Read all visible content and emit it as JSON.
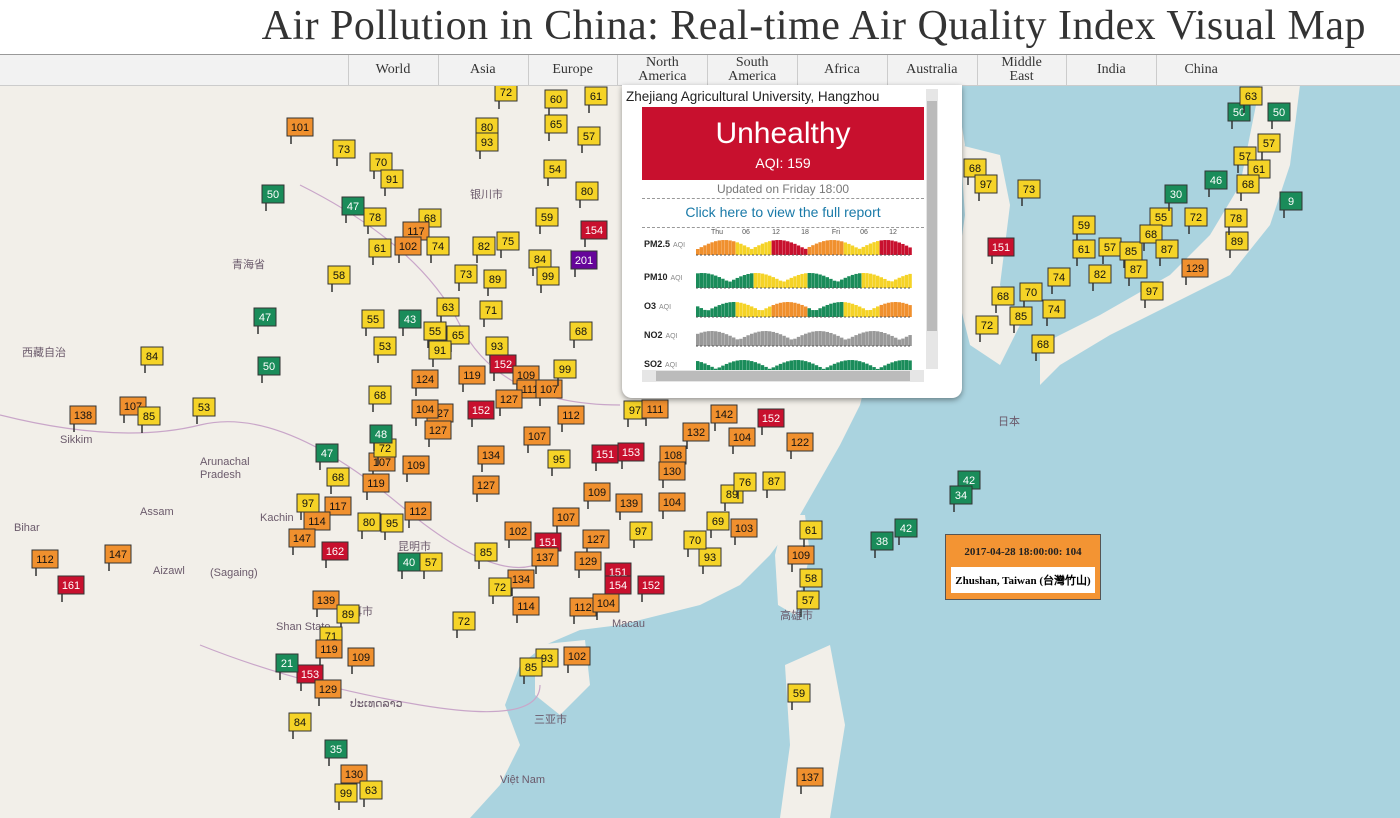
{
  "header": {
    "title": "Air Pollution in China: Real-time Air Quality Index Visual Map"
  },
  "nav": [
    "World",
    "Asia",
    "Europe",
    "North America",
    "South America",
    "Africa",
    "Australia",
    "Middle East",
    "India",
    "China"
  ],
  "popup": {
    "station": "Zhejiang Agricultural University, Hangzhou",
    "status": "Unhealthy",
    "aqi": "AQI: 159",
    "updated": "Updated on Friday 18:00",
    "link": "Click here to view the full report",
    "axis": [
      "Thu",
      "06",
      "12",
      "18",
      "Fri",
      "06",
      "12"
    ],
    "pollutants": [
      {
        "name": "PM2.5",
        "unit": "AQI"
      },
      {
        "name": "PM10",
        "unit": "AQI"
      },
      {
        "name": "O3",
        "unit": "AQI"
      },
      {
        "name": "NO2",
        "unit": "AQI"
      },
      {
        "name": "SO2",
        "unit": "AQI"
      }
    ]
  },
  "tooltip": {
    "time": "2017-04-28 18:00:00:",
    "value": 104,
    "place": "Zhushan, Taiwan (台灣竹山)"
  },
  "map_labels": [
    "银川市",
    "青海省",
    "西藏自治",
    "Arunachal",
    "Pradesh",
    "Kachin",
    "Assam",
    "Bihar",
    "Aizawl",
    "(Sagaing)",
    "Shan State",
    "昆明市",
    "普洱市",
    "Macau",
    "三亚市",
    "Việt Nam",
    "高雄市",
    "日本",
    "ປະເທດລາວ",
    "Sikkim"
  ],
  "markers": [
    72,
    60,
    61,
    101,
    80,
    93,
    65,
    57,
    73,
    70,
    91,
    54,
    80,
    50,
    47,
    78,
    68,
    117,
    74,
    102,
    61,
    82,
    75,
    59,
    154,
    201,
    84,
    99,
    73,
    89,
    58,
    47,
    55,
    43,
    71,
    63,
    55,
    65,
    53,
    91,
    93,
    152,
    68,
    84,
    50,
    109,
    119,
    111,
    107,
    68,
    124,
    99,
    53,
    107,
    85,
    138,
    127,
    152,
    127,
    112,
    97,
    111,
    104,
    127,
    107,
    134,
    95,
    109,
    107,
    72,
    48,
    47,
    68,
    119,
    127,
    97,
    117,
    114,
    147,
    80,
    95,
    112,
    162,
    109,
    139,
    104,
    107,
    127,
    97,
    102,
    151,
    137,
    85,
    129,
    93,
    70,
    69,
    103,
    89,
    87,
    76,
    151,
    154,
    152,
    134,
    114,
    112,
    104,
    72,
    57,
    40,
    147,
    112,
    161,
    139,
    89,
    72,
    71,
    119,
    109,
    153,
    129,
    21,
    93,
    102,
    85,
    84,
    35,
    130,
    99,
    63,
    59,
    137,
    109,
    61,
    58,
    57,
    38,
    42,
    42,
    34,
    152,
    122,
    142,
    104,
    132,
    108,
    130,
    151,
    153,
    73,
    151,
    59,
    61,
    57,
    85,
    87,
    97,
    82,
    129,
    74,
    70,
    68,
    72,
    85,
    74,
    68,
    89,
    78,
    72,
    55,
    68,
    87,
    30,
    46,
    57,
    61,
    68,
    9,
    50,
    50,
    63,
    57,
    68,
    97
  ]
}
